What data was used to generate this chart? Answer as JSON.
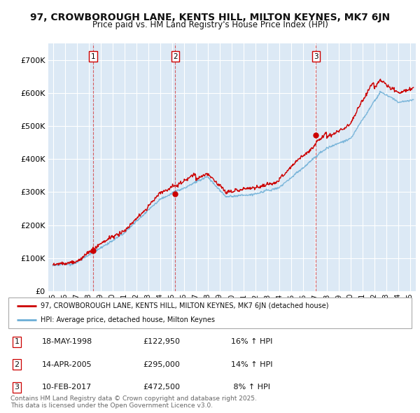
{
  "title": "97, CROWBOROUGH LANE, KENTS HILL, MILTON KEYNES, MK7 6JN",
  "subtitle": "Price paid vs. HM Land Registry's House Price Index (HPI)",
  "title_fontsize": 10,
  "subtitle_fontsize": 8.5,
  "background_color": "#ffffff",
  "plot_bg_color": "#dce9f5",
  "grid_color": "#ffffff",
  "red_color": "#cc0000",
  "blue_color": "#6baed6",
  "sale_dates": [
    1998.37,
    2005.28,
    2017.11
  ],
  "sale_prices": [
    122950,
    295000,
    472500
  ],
  "sale_labels": [
    "1",
    "2",
    "3"
  ],
  "legend_line1": "97, CROWBOROUGH LANE, KENTS HILL, MILTON KEYNES, MK7 6JN (detached house)",
  "legend_line2": "HPI: Average price, detached house, Milton Keynes",
  "table_rows": [
    [
      "1",
      "18-MAY-1998",
      "£122,950",
      "16% ↑ HPI"
    ],
    [
      "2",
      "14-APR-2005",
      "£295,000",
      "14% ↑ HPI"
    ],
    [
      "3",
      "10-FEB-2017",
      "£472,500",
      " 8% ↑ HPI"
    ]
  ],
  "footer": "Contains HM Land Registry data © Crown copyright and database right 2025.\nThis data is licensed under the Open Government Licence v3.0.",
  "ylim": [
    0,
    750000
  ],
  "yticks": [
    0,
    100000,
    200000,
    300000,
    400000,
    500000,
    600000,
    700000
  ],
  "xlim_start": 1994.6,
  "xlim_end": 2025.5
}
